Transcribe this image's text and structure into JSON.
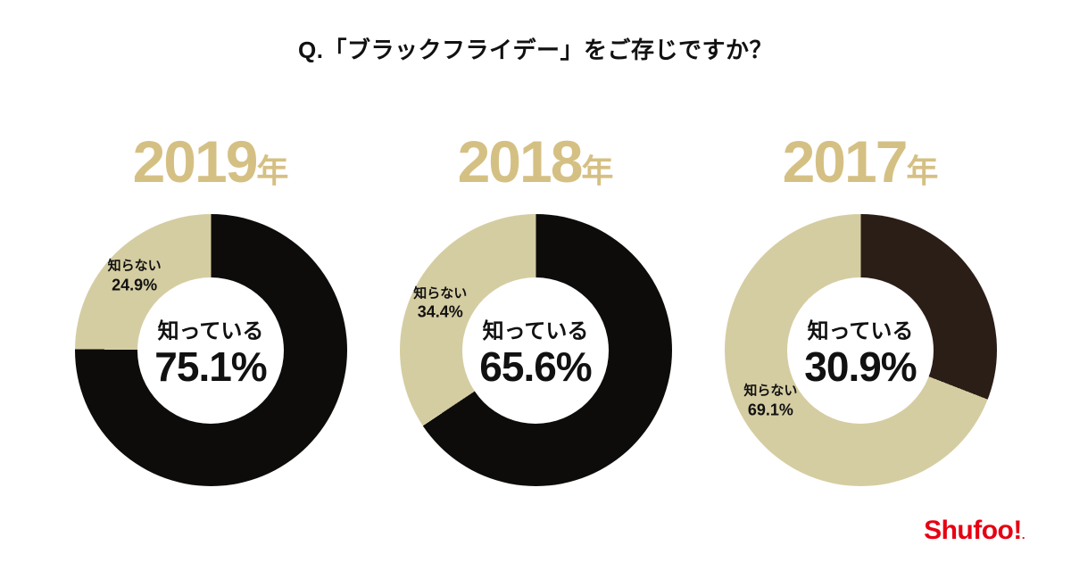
{
  "title": "Q.「ブラックフライデー」をご存じですか？",
  "logo": {
    "text": "Shufoo!",
    "mark": "."
  },
  "colors": {
    "year_heading": "#d5c084",
    "know_black": "#0d0c0a",
    "know_dark_brown_2017": "#2b1e17",
    "dont_know_beige": "#d5cda2",
    "logo_red": "#e60012",
    "background": "#ffffff"
  },
  "chart_data": [
    {
      "type": "pie",
      "title": "2019年",
      "year": "2019",
      "year_suffix": "年",
      "segments": [
        {
          "label": "知っている",
          "value": 75.1,
          "display": "75.1%",
          "color": "#0d0c0a",
          "position": "center"
        },
        {
          "label": "知らない",
          "value": 24.9,
          "display": "24.9%",
          "color": "#d5cda2",
          "position": "upper-left"
        }
      ]
    },
    {
      "type": "pie",
      "title": "2018年",
      "year": "2018",
      "year_suffix": "年",
      "segments": [
        {
          "label": "知っている",
          "value": 65.6,
          "display": "65.6%",
          "color": "#0d0c0a",
          "position": "center"
        },
        {
          "label": "知らない",
          "value": 34.4,
          "display": "34.4%",
          "color": "#d5cda2",
          "position": "left"
        }
      ]
    },
    {
      "type": "pie",
      "title": "2017年",
      "year": "2017",
      "year_suffix": "年",
      "segments": [
        {
          "label": "知っている",
          "value": 30.9,
          "display": "30.9%",
          "color": "#2b1e17",
          "position": "center"
        },
        {
          "label": "知らない",
          "value": 69.1,
          "display": "69.1%",
          "color": "#d5cda2",
          "position": "lower-left"
        }
      ]
    }
  ]
}
